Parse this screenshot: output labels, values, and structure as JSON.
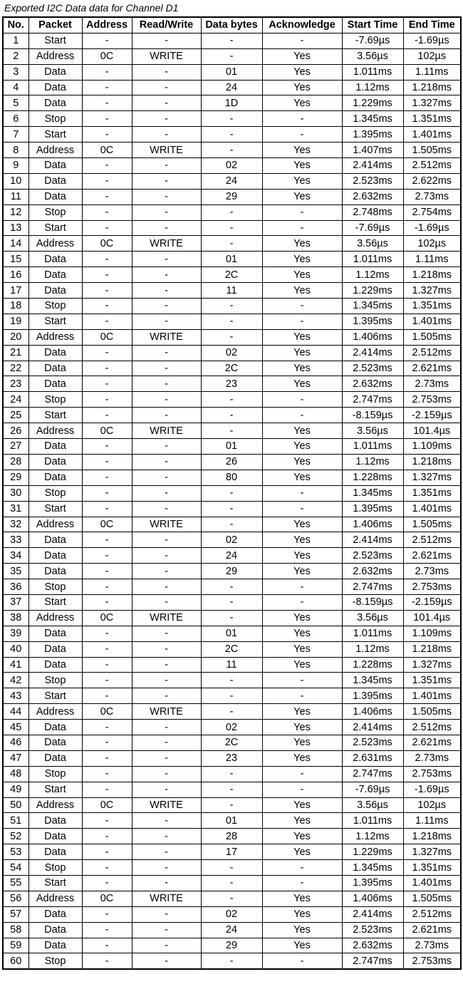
{
  "title": "Exported I2C Data data for Channel D1",
  "columns": [
    "No.",
    "Packet",
    "Address",
    "Read/Write",
    "Data bytes",
    "Acknowledge",
    "Start Time",
    "End Time"
  ],
  "rows": [
    [
      "1",
      "Start",
      "-",
      "-",
      "-",
      "-",
      "-7.69µs",
      "-1.69µs"
    ],
    [
      "2",
      "Address",
      "0C",
      "WRITE",
      "-",
      "Yes",
      "3.56µs",
      "102µs"
    ],
    [
      "3",
      "Data",
      "-",
      "-",
      "01",
      "Yes",
      "1.011ms",
      "1.11ms"
    ],
    [
      "4",
      "Data",
      "-",
      "-",
      "24",
      "Yes",
      "1.12ms",
      "1.218ms"
    ],
    [
      "5",
      "Data",
      "-",
      "-",
      "1D",
      "Yes",
      "1.229ms",
      "1.327ms"
    ],
    [
      "6",
      "Stop",
      "-",
      "-",
      "-",
      "-",
      "1.345ms",
      "1.351ms"
    ],
    [
      "7",
      "Start",
      "-",
      "-",
      "-",
      "-",
      "1.395ms",
      "1.401ms"
    ],
    [
      "8",
      "Address",
      "0C",
      "WRITE",
      "-",
      "Yes",
      "1.407ms",
      "1.505ms"
    ],
    [
      "9",
      "Data",
      "-",
      "-",
      "02",
      "Yes",
      "2.414ms",
      "2.512ms"
    ],
    [
      "10",
      "Data",
      "-",
      "-",
      "24",
      "Yes",
      "2.523ms",
      "2.622ms"
    ],
    [
      "11",
      "Data",
      "-",
      "-",
      "29",
      "Yes",
      "2.632ms",
      "2.73ms"
    ],
    [
      "12",
      "Stop",
      "-",
      "-",
      "-",
      "-",
      "2.748ms",
      "2.754ms"
    ],
    [
      "13",
      "Start",
      "-",
      "-",
      "-",
      "-",
      "-7.69µs",
      "-1.69µs"
    ],
    [
      "14",
      "Address",
      "0C",
      "WRITE",
      "-",
      "Yes",
      "3.56µs",
      "102µs"
    ],
    [
      "15",
      "Data",
      "-",
      "-",
      "01",
      "Yes",
      "1.011ms",
      "1.11ms"
    ],
    [
      "16",
      "Data",
      "-",
      "-",
      "2C",
      "Yes",
      "1.12ms",
      "1.218ms"
    ],
    [
      "17",
      "Data",
      "-",
      "-",
      "11",
      "Yes",
      "1.229ms",
      "1.327ms"
    ],
    [
      "18",
      "Stop",
      "-",
      "-",
      "-",
      "-",
      "1.345ms",
      "1.351ms"
    ],
    [
      "19",
      "Start",
      "-",
      "-",
      "-",
      "-",
      "1.395ms",
      "1.401ms"
    ],
    [
      "20",
      "Address",
      "0C",
      "WRITE",
      "-",
      "Yes",
      "1.406ms",
      "1.505ms"
    ],
    [
      "21",
      "Data",
      "-",
      "-",
      "02",
      "Yes",
      "2.414ms",
      "2.512ms"
    ],
    [
      "22",
      "Data",
      "-",
      "-",
      "2C",
      "Yes",
      "2.523ms",
      "2.621ms"
    ],
    [
      "23",
      "Data",
      "-",
      "-",
      "23",
      "Yes",
      "2.632ms",
      "2.73ms"
    ],
    [
      "24",
      "Stop",
      "-",
      "-",
      "-",
      "-",
      "2.747ms",
      "2.753ms"
    ],
    [
      "25",
      "Start",
      "-",
      "-",
      "-",
      "-",
      "-8.159µs",
      "-2.159µs"
    ],
    [
      "26",
      "Address",
      "0C",
      "WRITE",
      "-",
      "Yes",
      "3.56µs",
      "101.4µs"
    ],
    [
      "27",
      "Data",
      "-",
      "-",
      "01",
      "Yes",
      "1.011ms",
      "1.109ms"
    ],
    [
      "28",
      "Data",
      "-",
      "-",
      "26",
      "Yes",
      "1.12ms",
      "1.218ms"
    ],
    [
      "29",
      "Data",
      "-",
      "-",
      "80",
      "Yes",
      "1.228ms",
      "1.327ms"
    ],
    [
      "30",
      "Stop",
      "-",
      "-",
      "-",
      "-",
      "1.345ms",
      "1.351ms"
    ],
    [
      "31",
      "Start",
      "-",
      "-",
      "-",
      "-",
      "1.395ms",
      "1.401ms"
    ],
    [
      "32",
      "Address",
      "0C",
      "WRITE",
      "-",
      "Yes",
      "1.406ms",
      "1.505ms"
    ],
    [
      "33",
      "Data",
      "-",
      "-",
      "02",
      "Yes",
      "2.414ms",
      "2.512ms"
    ],
    [
      "34",
      "Data",
      "-",
      "-",
      "24",
      "Yes",
      "2.523ms",
      "2.621ms"
    ],
    [
      "35",
      "Data",
      "-",
      "-",
      "29",
      "Yes",
      "2.632ms",
      "2.73ms"
    ],
    [
      "36",
      "Stop",
      "-",
      "-",
      "-",
      "-",
      "2.747ms",
      "2.753ms"
    ],
    [
      "37",
      "Start",
      "-",
      "-",
      "-",
      "-",
      "-8.159µs",
      "-2.159µs"
    ],
    [
      "38",
      "Address",
      "0C",
      "WRITE",
      "-",
      "Yes",
      "3.56µs",
      "101.4µs"
    ],
    [
      "39",
      "Data",
      "-",
      "-",
      "01",
      "Yes",
      "1.011ms",
      "1.109ms"
    ],
    [
      "40",
      "Data",
      "-",
      "-",
      "2C",
      "Yes",
      "1.12ms",
      "1.218ms"
    ],
    [
      "41",
      "Data",
      "-",
      "-",
      "11",
      "Yes",
      "1.228ms",
      "1.327ms"
    ],
    [
      "42",
      "Stop",
      "-",
      "-",
      "-",
      "-",
      "1.345ms",
      "1.351ms"
    ],
    [
      "43",
      "Start",
      "-",
      "-",
      "-",
      "-",
      "1.395ms",
      "1.401ms"
    ],
    [
      "44",
      "Address",
      "0C",
      "WRITE",
      "-",
      "Yes",
      "1.406ms",
      "1.505ms"
    ],
    [
      "45",
      "Data",
      "-",
      "-",
      "02",
      "Yes",
      "2.414ms",
      "2.512ms"
    ],
    [
      "46",
      "Data",
      "-",
      "-",
      "2C",
      "Yes",
      "2.523ms",
      "2.621ms"
    ],
    [
      "47",
      "Data",
      "-",
      "-",
      "23",
      "Yes",
      "2.631ms",
      "2.73ms"
    ],
    [
      "48",
      "Stop",
      "-",
      "-",
      "-",
      "-",
      "2.747ms",
      "2.753ms"
    ],
    [
      "49",
      "Start",
      "-",
      "-",
      "-",
      "-",
      "-7.69µs",
      "-1.69µs"
    ],
    [
      "50",
      "Address",
      "0C",
      "WRITE",
      "-",
      "Yes",
      "3.56µs",
      "102µs"
    ],
    [
      "51",
      "Data",
      "-",
      "-",
      "01",
      "Yes",
      "1.011ms",
      "1.11ms"
    ],
    [
      "52",
      "Data",
      "-",
      "-",
      "28",
      "Yes",
      "1.12ms",
      "1.218ms"
    ],
    [
      "53",
      "Data",
      "-",
      "-",
      "17",
      "Yes",
      "1.229ms",
      "1.327ms"
    ],
    [
      "54",
      "Stop",
      "-",
      "-",
      "-",
      "-",
      "1.345ms",
      "1.351ms"
    ],
    [
      "55",
      "Start",
      "-",
      "-",
      "-",
      "-",
      "1.395ms",
      "1.401ms"
    ],
    [
      "56",
      "Address",
      "0C",
      "WRITE",
      "-",
      "Yes",
      "1.406ms",
      "1.505ms"
    ],
    [
      "57",
      "Data",
      "-",
      "-",
      "02",
      "Yes",
      "2.414ms",
      "2.512ms"
    ],
    [
      "58",
      "Data",
      "-",
      "-",
      "24",
      "Yes",
      "2.523ms",
      "2.621ms"
    ],
    [
      "59",
      "Data",
      "-",
      "-",
      "29",
      "Yes",
      "2.632ms",
      "2.73ms"
    ],
    [
      "60",
      "Stop",
      "-",
      "-",
      "-",
      "-",
      "2.747ms",
      "2.753ms"
    ]
  ]
}
